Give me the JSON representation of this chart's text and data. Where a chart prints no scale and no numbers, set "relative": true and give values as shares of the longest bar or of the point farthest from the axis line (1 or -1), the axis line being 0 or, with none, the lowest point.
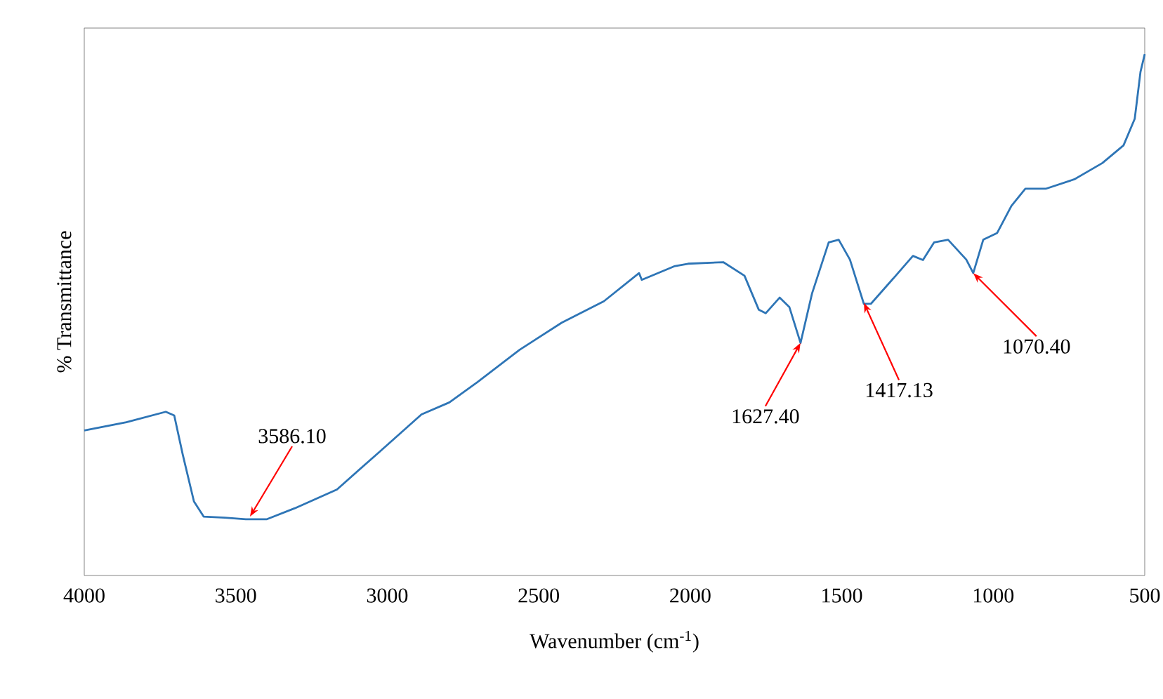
{
  "chart_data": {
    "type": "line",
    "relative": true,
    "xlabel": "Wavenumber (cm$^{-1}$)",
    "ylabel": "% Transmittance",
    "xlim": [
      4000,
      500
    ],
    "xticks": [
      4000,
      3500,
      3000,
      2500,
      2000,
      1500,
      1000,
      500
    ],
    "grid": false,
    "marker": "none",
    "line_style": "solid",
    "x": [
      4000,
      3861,
      3731,
      3703,
      3675,
      3638,
      3606,
      3536,
      3467,
      3397,
      3305,
      3166,
      3026,
      2887,
      2795,
      2702,
      2563,
      2424,
      2285,
      2169,
      2160,
      2053,
      2007,
      1891,
      1821,
      1774,
      1751,
      1705,
      1673,
      1636,
      1598,
      1543,
      1510,
      1473,
      1427,
      1404,
      1334,
      1265,
      1232,
      1195,
      1149,
      1089,
      1066,
      1033,
      987,
      940,
      894,
      825,
      732,
      640,
      570,
      533,
      514,
      500
    ],
    "series": [
      {
        "color": "#2e75b6",
        "values": [
          0.278,
          0.294,
          0.314,
          0.307,
          0.232,
          0.142,
          0.113,
          0.111,
          0.108,
          0.108,
          0.129,
          0.165,
          0.237,
          0.309,
          0.332,
          0.371,
          0.433,
          0.485,
          0.526,
          0.58,
          0.567,
          0.593,
          0.598,
          0.601,
          0.575,
          0.51,
          0.503,
          0.533,
          0.515,
          0.446,
          0.541,
          0.639,
          0.644,
          0.606,
          0.521,
          0.521,
          0.567,
          0.613,
          0.605,
          0.639,
          0.644,
          0.606,
          0.58,
          0.644,
          0.657,
          0.709,
          0.742,
          0.742,
          0.76,
          0.791,
          0.825,
          0.876,
          0.966,
          1.0
        ]
      }
    ],
    "annotations": [
      {
        "text": "3586.10",
        "x": 3453,
        "y": 0.113
      },
      {
        "text": "1627.40",
        "x": 1636,
        "y": 0.446
      },
      {
        "text": "1417.13",
        "x": 1427,
        "y": 0.523
      },
      {
        "text": "1070.40",
        "x": 1066,
        "y": 0.58
      }
    ]
  }
}
